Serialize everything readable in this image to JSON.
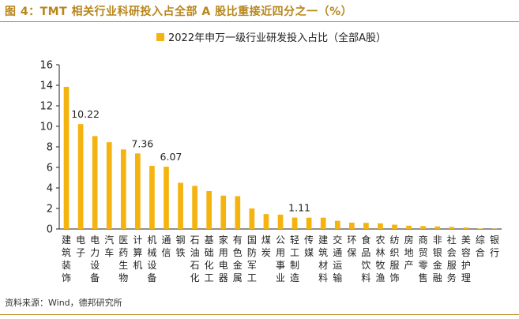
{
  "figure": {
    "title": "图 4：TMT 相关行业科研投入占全部 A 股比重接近四分之一（%）",
    "source": "资料来源：Wind，德邦研究所"
  },
  "colors": {
    "accent": "#b8861b",
    "bar": "#f5b30f",
    "axis": "#222222"
  },
  "chart_data": {
    "type": "bar",
    "title": "",
    "xlabel": "",
    "ylabel": "",
    "ylim": [
      0,
      16
    ],
    "yticks": [
      0,
      2,
      4,
      6,
      8,
      10,
      12,
      14,
      16
    ],
    "grid": false,
    "legend_position": "top-center",
    "categories": [
      "建筑装饰",
      "电子",
      "电力设备",
      "汽车",
      "医药生物",
      "计算机",
      "机械设备",
      "通信",
      "钢铁",
      "石油石化",
      "基础化工",
      "家用电器",
      "有色金属",
      "国防军工",
      "煤炭",
      "公用事业",
      "轻工制造",
      "传媒",
      "建筑材料",
      "交通运输",
      "环保",
      "食品饮料",
      "农林牧渔",
      "纺织服饰",
      "房地产",
      "商贸零售",
      "非银金融",
      "社会服务",
      "美容护理",
      "综合",
      "银行"
    ],
    "series": [
      {
        "name": "2022年申万一级行业研发投入占比（全部A股）",
        "values": [
          13.85,
          10.22,
          9.05,
          8.45,
          7.75,
          7.36,
          6.15,
          6.07,
          4.5,
          4.2,
          3.7,
          3.25,
          3.2,
          2.0,
          1.45,
          1.4,
          1.11,
          1.1,
          1.1,
          0.8,
          0.62,
          0.6,
          0.55,
          0.42,
          0.32,
          0.28,
          0.25,
          0.2,
          0.15,
          0.05,
          0.02
        ]
      }
    ],
    "data_labels": [
      {
        "index": 1,
        "text": "10.22"
      },
      {
        "index": 5,
        "text": "7.36"
      },
      {
        "index": 7,
        "text": "6.07"
      },
      {
        "index": 16,
        "text": "1.11"
      }
    ]
  }
}
